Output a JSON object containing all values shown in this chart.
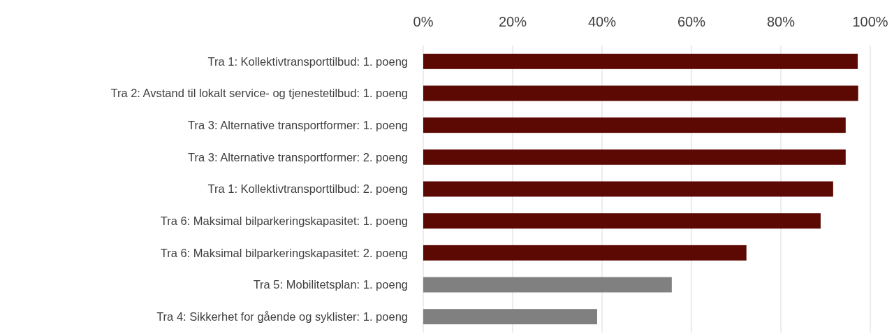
{
  "chart_data": {
    "type": "bar",
    "orientation": "horizontal",
    "categories": [
      "Tra 1: Kollektivtransporttilbud: 1. poeng",
      "Tra 2: Avstand til lokalt service- og tjenestetilbud: 1. poeng",
      "Tra 3: Alternative transportformer: 1. poeng",
      "Tra 3: Alternative transportformer: 2. poeng",
      "Tra 1: Kollektivtransporttilbud: 2. poeng",
      "Tra 6: Maksimal bilparkeringskapasitet: 1. poeng",
      "Tra 6: Maksimal bilparkeringskapasitet: 2. poeng",
      "Tra 5: Mobilitetsplan: 1. poeng",
      "Tra 4: Sikkerhet for gående og syklister: 1. poeng"
    ],
    "values": [
      97.2,
      97.3,
      94.5,
      94.5,
      91.7,
      88.9,
      72.3,
      55.6,
      38.9
    ],
    "colors": [
      "#5c0803",
      "#5c0803",
      "#5c0803",
      "#5c0803",
      "#5c0803",
      "#5c0803",
      "#5c0803",
      "#808080",
      "#808080"
    ],
    "xlim": [
      0,
      100
    ],
    "xticks": [
      {
        "value": 0,
        "label": "0%"
      },
      {
        "value": 20,
        "label": "20%"
      },
      {
        "value": 40,
        "label": "40%"
      },
      {
        "value": 60,
        "label": "60%"
      },
      {
        "value": 80,
        "label": "80%"
      },
      {
        "value": 100,
        "label": "100%"
      }
    ],
    "grid": "x"
  }
}
